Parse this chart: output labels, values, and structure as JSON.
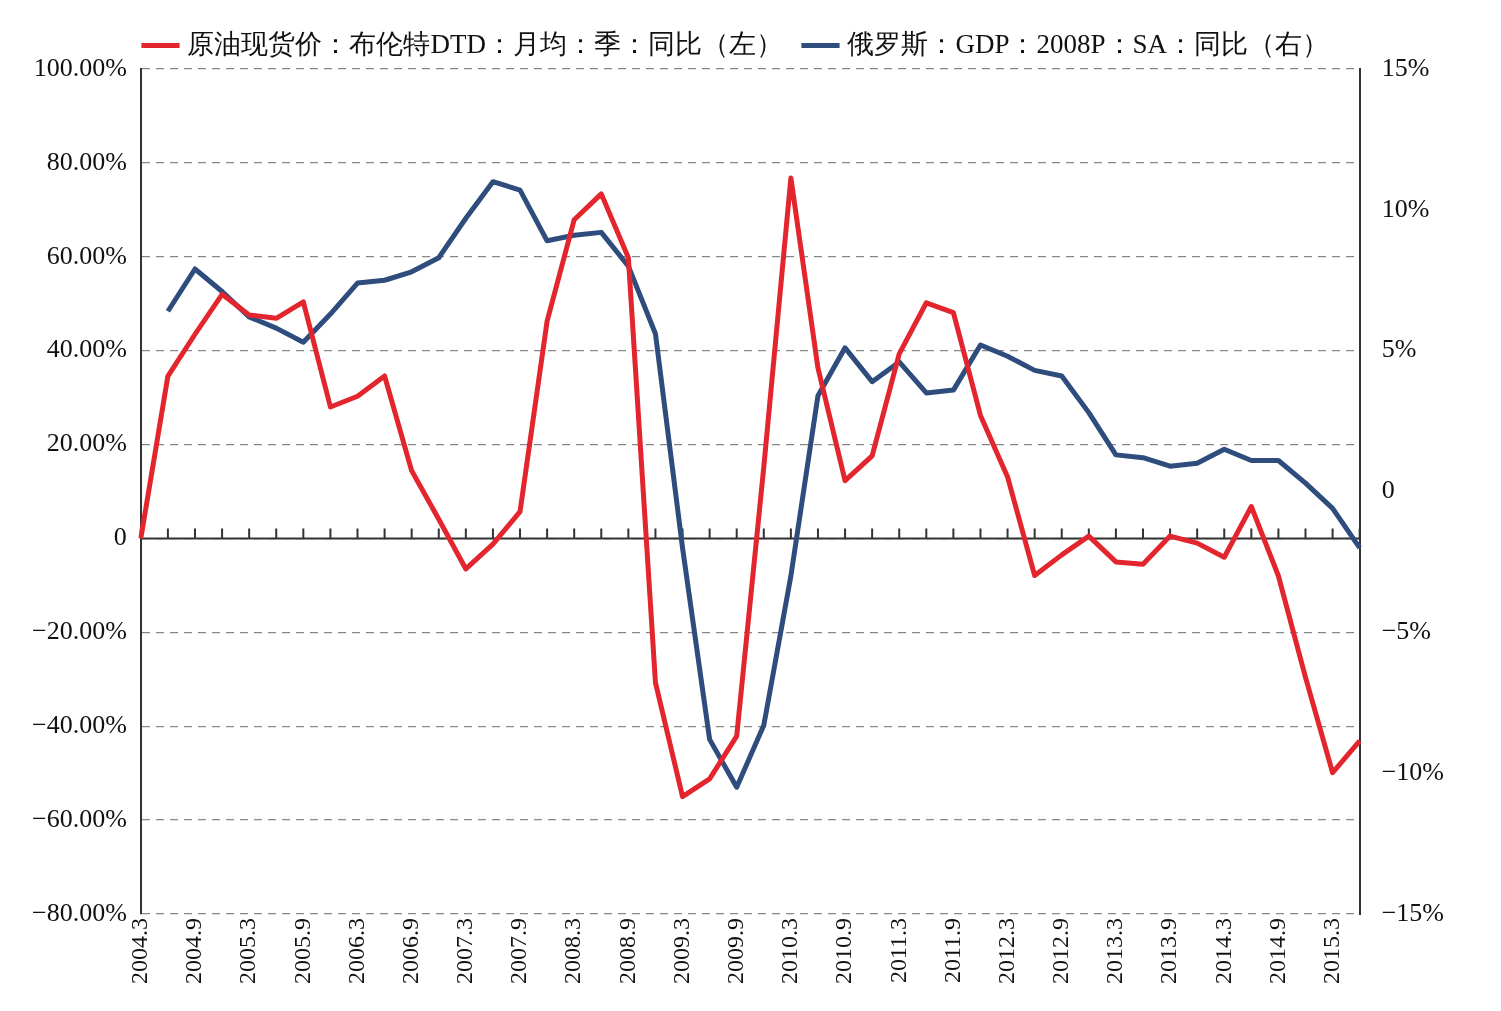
{
  "chart_data": {
    "type": "line",
    "categories": [
      "2004.3",
      null,
      "2004.9",
      null,
      "2005.3",
      null,
      "2005.9",
      null,
      "2006.3",
      null,
      "2006.9",
      null,
      "2007.3",
      null,
      "2007.9",
      null,
      "2008.3",
      null,
      "2008.9",
      null,
      "2009.3",
      null,
      "2009.9",
      null,
      "2010.3",
      null,
      "2010.9",
      null,
      "2011.3",
      null,
      "2011.9",
      null,
      "2012.3",
      null,
      "2012.9",
      null,
      "2013.3",
      null,
      "2013.9",
      null,
      "2014.3",
      null,
      "2014.9",
      null,
      "2015.3",
      null
    ],
    "series": [
      {
        "name": "原油现货价：布伦特DTD：月均：季：同比（左）",
        "color": "#e3262e",
        "values": [
          0,
          34.6,
          43.5,
          52.0,
          47.6,
          46.9,
          50.4,
          28.0,
          30.3,
          34.6,
          14.4,
          4.1,
          -6.5,
          -1.2,
          5.7,
          46.3,
          67.9,
          73.4,
          59.8,
          -30.7,
          -55.0,
          -51.2,
          -42.1,
          15.2,
          76.8,
          36.3,
          12.3,
          17.6,
          39.3,
          50.2,
          48.1,
          26.2,
          13.1,
          -7.9,
          -3.5,
          0.5,
          -5.0,
          -5.5,
          0.5,
          -1.0,
          -4.0,
          6.8,
          -8.0,
          -29.6,
          -49.9,
          -43.1
        ]
      },
      {
        "name": "俄罗斯：GDP：2008P：SA：同比（右）",
        "color": "#2e4c7c",
        "axis": "y2",
        "values": [
          null,
          6.4,
          7.9,
          7.1,
          6.2,
          5.8,
          5.3,
          6.3,
          7.4,
          7.5,
          7.8,
          8.3,
          9.7,
          11.0,
          10.7,
          8.9,
          9.1,
          9.2,
          8.0,
          5.6,
          -2.0,
          -8.8,
          -10.5,
          -8.3,
          -3.0,
          3.4,
          5.1,
          3.9,
          4.6,
          3.5,
          3.6,
          5.2,
          4.8,
          4.3,
          4.1,
          2.8,
          1.3,
          1.2,
          0.9,
          1.0,
          1.5,
          1.1,
          1.1,
          0.3,
          -0.6,
          -2.0
        ]
      }
    ],
    "ylim": [
      -80,
      100
    ],
    "yticks": [
      {
        "value": 100,
        "label": "100.00%"
      },
      {
        "value": 80,
        "label": "80.00%"
      },
      {
        "value": 60,
        "label": "60.00%"
      },
      {
        "value": 40,
        "label": "40.00%"
      },
      {
        "value": 20,
        "label": "20.00%"
      },
      0,
      {
        "value": -20,
        "label": "−20.00%"
      },
      {
        "value": -40,
        "label": "−40.00%"
      },
      {
        "value": -60,
        "label": "−60.00%"
      },
      {
        "value": -80,
        "label": "−80.00%"
      }
    ],
    "y2lim": [
      -15,
      15
    ],
    "y2ticks": [
      {
        "value": 15,
        "label": "15%"
      },
      {
        "value": 10,
        "label": "10%"
      },
      {
        "value": 5,
        "label": "5%"
      },
      0,
      {
        "value": -5,
        "label": "−5%"
      },
      {
        "value": -10,
        "label": "−10%"
      },
      {
        "value": -15,
        "label": "−15%"
      }
    ],
    "grid": "y",
    "legend": "top",
    "marker": "none",
    "line_style": "solid"
  }
}
